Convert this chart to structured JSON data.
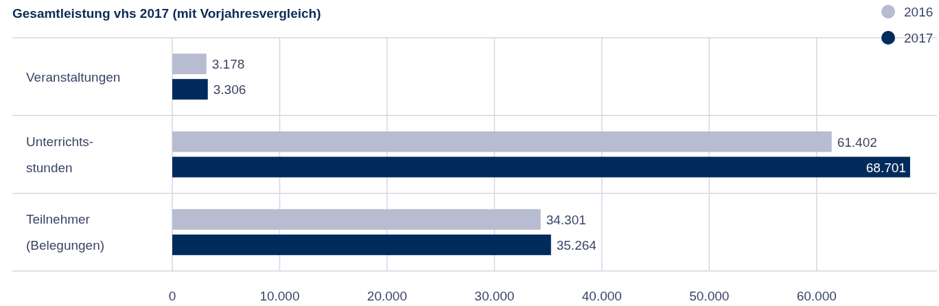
{
  "chart_data": {
    "type": "bar",
    "orientation": "horizontal",
    "title": "Gesamtleistung vhs 2017 (mit Vorjahresvergleich)",
    "categories": [
      "Veranstaltungen",
      "Unterrichts-stunden",
      "Teilnehmer (Belegungen)"
    ],
    "series": [
      {
        "name": "2016",
        "color": "#b8bcd1",
        "values": [
          3178,
          61402,
          34301
        ],
        "value_labels": [
          "3.178",
          "61.402",
          "34.301"
        ]
      },
      {
        "name": "2017",
        "color": "#002b5c",
        "values": [
          3306,
          68701,
          35264
        ],
        "value_labels": [
          "3.306",
          "68.701",
          "35.264"
        ]
      }
    ],
    "xlim": [
      0,
      71200
    ],
    "xticks": [
      {
        "value": 0,
        "label": "0"
      },
      {
        "value": 10000,
        "label": "10.000"
      },
      {
        "value": 20000,
        "label": "20.000"
      },
      {
        "value": 30000,
        "label": "30.000"
      },
      {
        "value": 40000,
        "label": "40.000"
      },
      {
        "value": 50000,
        "label": "50.000"
      },
      {
        "value": 60000,
        "label": "60.000"
      }
    ],
    "grid": "x",
    "legend": "top right"
  }
}
